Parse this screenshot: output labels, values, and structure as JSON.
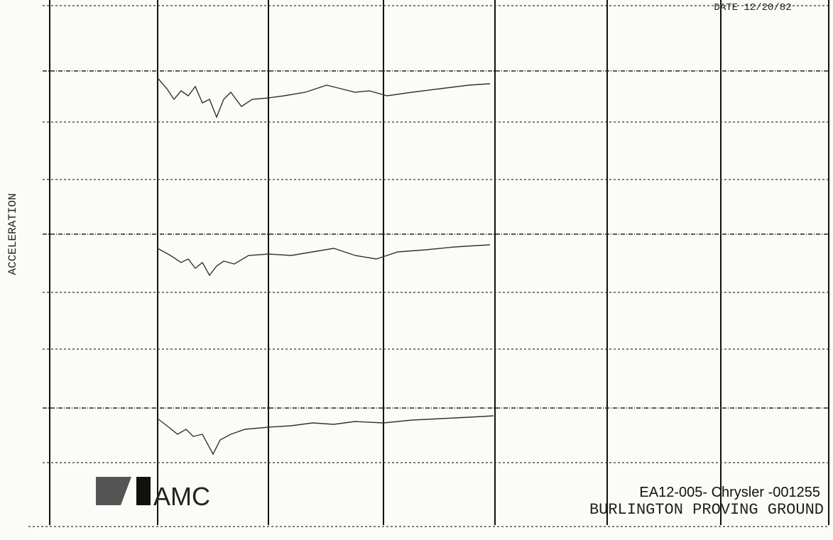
{
  "header": {
    "date_line": "DATE 12/20/82"
  },
  "axis": {
    "y_label": "ACCELERATION"
  },
  "footer": {
    "logo": "AMC",
    "doc_id": "EA12-005- Chrysler -001255",
    "location": "BURLINGTON PROVING GROUND"
  }
}
